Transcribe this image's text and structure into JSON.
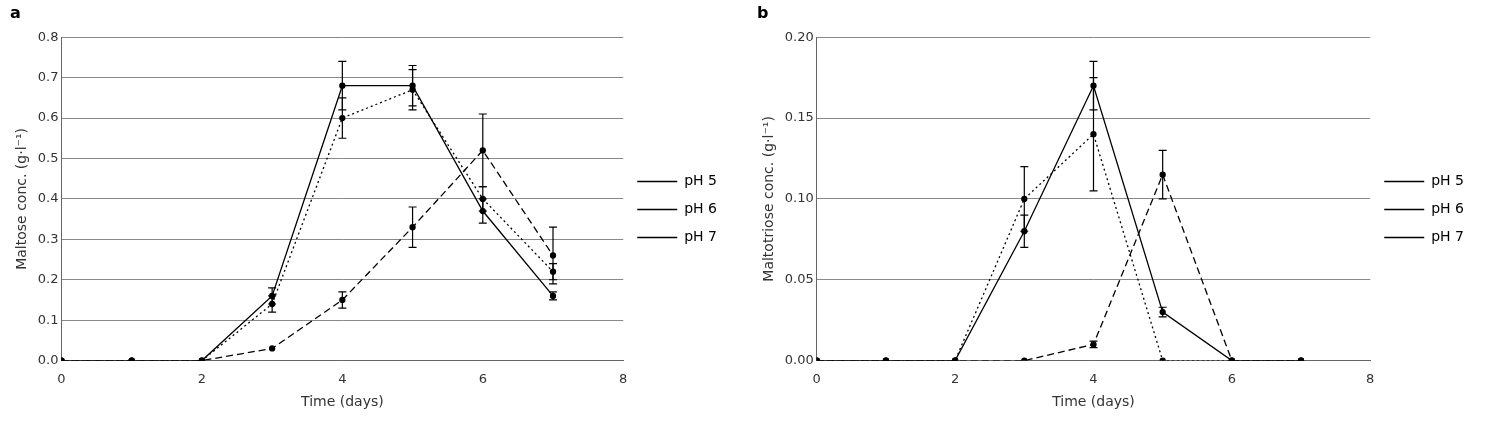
{
  "chart_data": [
    {
      "type": "line",
      "title": "a",
      "x": [
        0,
        1,
        2,
        3,
        4,
        5,
        6,
        7
      ],
      "x_label": "Time (days)",
      "y_label": "Maltose conc. (g·l⁻¹)",
      "xlim": [
        0,
        8
      ],
      "xticks": [
        0,
        2,
        4,
        6,
        8
      ],
      "ylim": [
        0,
        0.8
      ],
      "yticks": [
        {
          "value": 0,
          "label": "0.0"
        },
        0.1,
        0.2,
        0.3,
        0.4,
        0.5,
        0.6,
        0.7,
        0.8
      ],
      "grid": true,
      "legend": "right",
      "series": [
        {
          "name": "pH 5",
          "color": "#000000",
          "line_style": "solid",
          "marker": "circle",
          "values": [
            0,
            0,
            0,
            0.16,
            0.68,
            0.68,
            0.37,
            0.16
          ],
          "errors": [
            null,
            null,
            null,
            0.02,
            0.06,
            0.05,
            0.03,
            0.01
          ]
        },
        {
          "name": "pH 6",
          "color": "#000000",
          "line_style": "dotted",
          "marker": "circle",
          "values": [
            0,
            0,
            0,
            0.14,
            0.6,
            0.67,
            0.4,
            0.22
          ],
          "errors": [
            null,
            null,
            null,
            0.02,
            0.05,
            0.05,
            0.03,
            0.02
          ]
        },
        {
          "name": "pH 7",
          "color": "#000000",
          "line_style": "dashed",
          "marker": "circle",
          "values": [
            0,
            0,
            0,
            0.03,
            0.15,
            0.33,
            0.52,
            0.26
          ],
          "errors": [
            null,
            null,
            null,
            null,
            0.02,
            0.05,
            0.09,
            0.07
          ]
        }
      ]
    },
    {
      "type": "line",
      "title": "b",
      "x": [
        0,
        1,
        2,
        3,
        4,
        5,
        6,
        7
      ],
      "x_label": "Time (days)",
      "y_label": "Maltotriose conc. (g·l⁻¹)",
      "xlim": [
        0,
        8
      ],
      "xticks": [
        0,
        2,
        4,
        6,
        8
      ],
      "ylim": [
        0,
        0.2
      ],
      "yticks": [
        {
          "value": 0,
          "label": "0.00"
        },
        {
          "value": 0.05,
          "label": "0.05"
        },
        {
          "value": 0.1,
          "label": "0.10"
        },
        {
          "value": 0.15,
          "label": "0.15"
        },
        {
          "value": 0.2,
          "label": "0.20"
        }
      ],
      "grid": true,
      "legend": "right",
      "series": [
        {
          "name": "pH 5",
          "color": "#000000",
          "line_style": "solid",
          "marker": "circle",
          "values": [
            0,
            0,
            0,
            0.08,
            0.17,
            0.03,
            0,
            0
          ],
          "errors": [
            null,
            null,
            null,
            0.01,
            0.015,
            0.003,
            null,
            null
          ]
        },
        {
          "name": "pH 6",
          "color": "#000000",
          "line_style": "dotted",
          "marker": "circle",
          "values": [
            0,
            0,
            0,
            0.1,
            0.14,
            0,
            0,
            0
          ],
          "errors": [
            null,
            null,
            null,
            0.02,
            0.035,
            null,
            null,
            null
          ]
        },
        {
          "name": "pH 7",
          "color": "#000000",
          "line_style": "dashed",
          "marker": "circle",
          "values": [
            0,
            0,
            0,
            0,
            0.01,
            0.115,
            0,
            0
          ],
          "errors": [
            null,
            null,
            null,
            null,
            0.002,
            0.015,
            null,
            null
          ]
        }
      ]
    }
  ]
}
